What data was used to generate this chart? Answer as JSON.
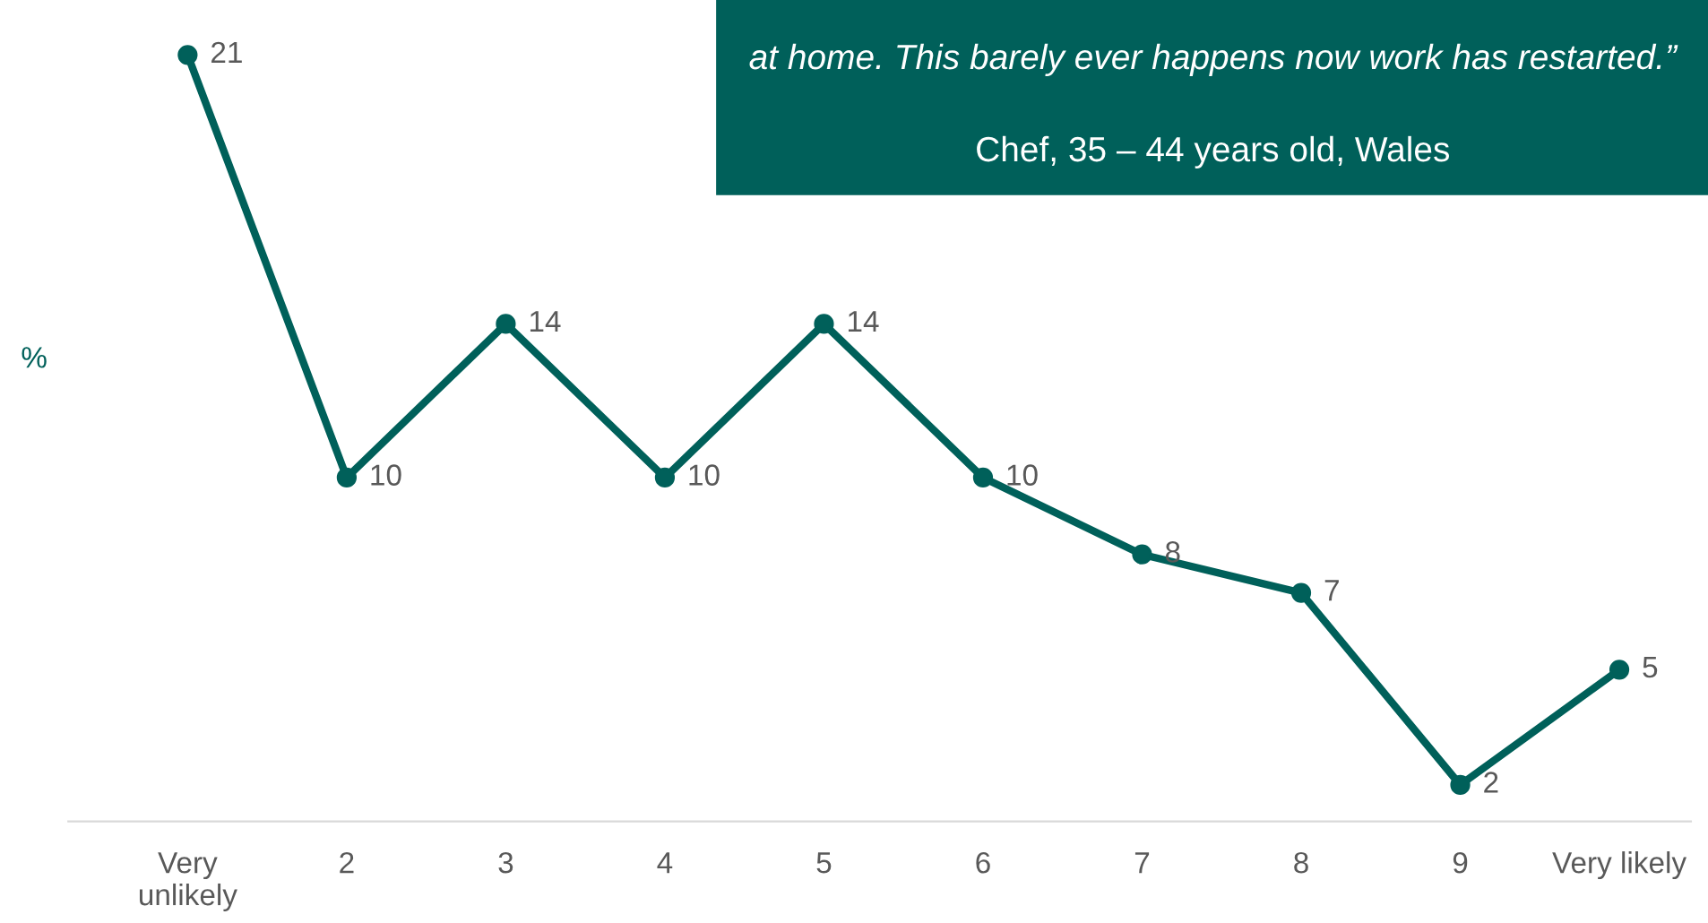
{
  "chart_data": {
    "type": "line",
    "ylabel": "%",
    "categories": [
      "Very\nunlikely",
      "2",
      "3",
      "4",
      "5",
      "6",
      "7",
      "8",
      "9",
      "Very likely"
    ],
    "series": [
      {
        "color": "#00605a",
        "values": [
          21,
          10,
          14,
          10,
          14,
          10,
          8,
          7,
          2,
          5
        ]
      }
    ],
    "data_labels": true,
    "marker": "circle",
    "line_style": "solid",
    "grid": false,
    "legend": false,
    "tick_labels": "x",
    "annotations": [
      "at home. This barely ever happens now work has restarted.”",
      "Chef, 35 – 44 years old, Wales"
    ]
  }
}
